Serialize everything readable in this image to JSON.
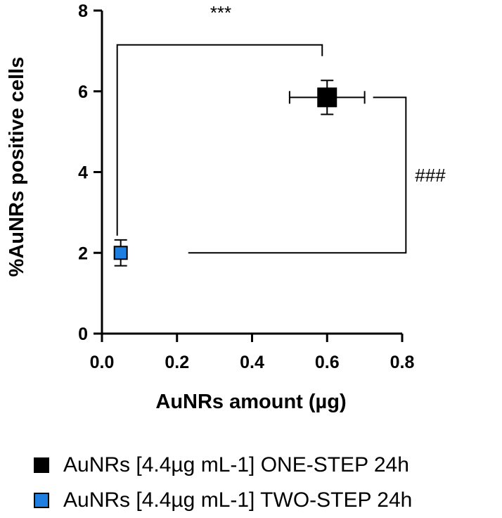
{
  "chart_data": {
    "type": "scatter",
    "title": "",
    "xlabel": "AuNRs amount (µg)",
    "ylabel": "%AuNRs positive cells",
    "xlim": [
      0,
      0.8
    ],
    "ylim": [
      0,
      8
    ],
    "x_ticks": [
      "0.0",
      "0.2",
      "0.4",
      "0.6",
      "0.8"
    ],
    "y_ticks": [
      "0",
      "2",
      "4",
      "6",
      "8"
    ],
    "grid": false,
    "legend_position": "bottom",
    "series": [
      {
        "name": "AuNRs [4.4µg mL-1] ONE-STEP 24h",
        "color": "#000000",
        "marker": "square",
        "points": [
          {
            "x": 0.6,
            "y": 5.85,
            "x_err": 0.1,
            "y_err": 0.42
          }
        ]
      },
      {
        "name": "AuNRs [4.4µg mL-1] TWO-STEP 24h",
        "color": "#1e7fe0",
        "marker": "square",
        "points": [
          {
            "x": 0.05,
            "y": 2.0,
            "x_err": 0.0,
            "y_err": 0.32
          }
        ]
      }
    ],
    "annotations": [
      {
        "text": "***"
      },
      {
        "text": "###"
      }
    ]
  }
}
